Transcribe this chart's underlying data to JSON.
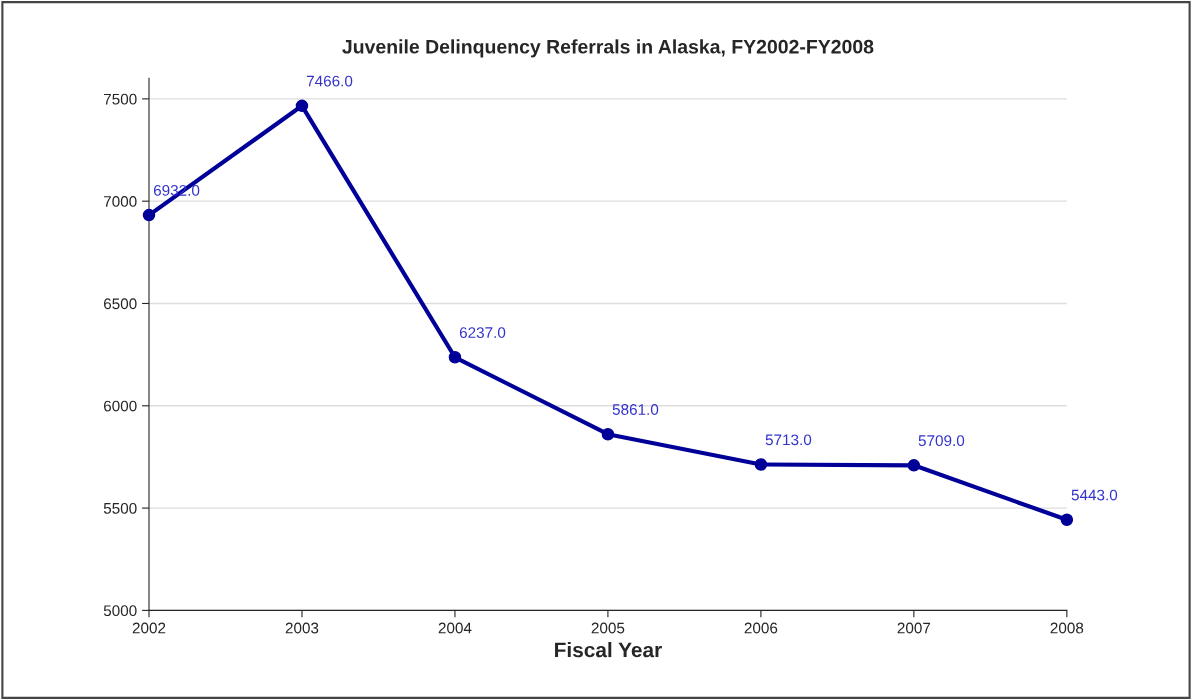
{
  "chart_data": {
    "type": "line",
    "title": "Juvenile Delinquency Referrals in Alaska, FY2002-FY2008",
    "xlabel": "Fiscal Year",
    "x": [
      2002,
      2003,
      2004,
      2005,
      2006,
      2007,
      2008
    ],
    "series": [
      {
        "color": "#000099",
        "values": [
          6932,
          7466,
          6237,
          5861,
          5713,
          5709,
          5443
        ],
        "value_labels": [
          "6932.0",
          "7466.0",
          "6237.0",
          "5861.0",
          "5713.0",
          "5709.0",
          "5443.0"
        ]
      }
    ],
    "xlim": [
      2002,
      2008
    ],
    "xticks": [
      2002,
      2003,
      2004,
      2005,
      2006,
      2007,
      2008
    ],
    "ylim": [
      5000,
      7600
    ],
    "yticks": [
      5000,
      5500,
      6000,
      6500,
      7000,
      7500
    ],
    "grid": "y",
    "marker": "circle",
    "line_style": "solid",
    "legend": false
  }
}
